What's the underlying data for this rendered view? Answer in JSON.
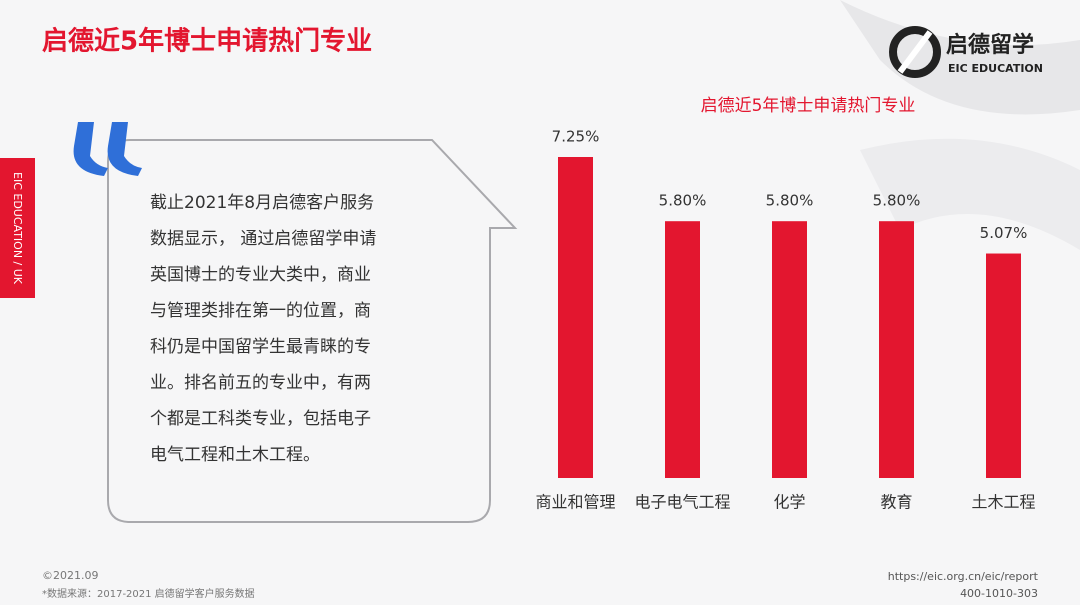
{
  "header": {
    "title": "启德近5年博士申请热门专业",
    "logo_name": "启德留学",
    "logo_sub": "EIC EDUCATION"
  },
  "side_label": "EIC EDUCATION / UK",
  "quote": {
    "lines": [
      "截止2021年8月启德客户服务",
      "数据显示， 通过启德留学申请",
      "英国博士的专业大类中，商业",
      "与管理类排在第一的位置，商",
      "科仍是中国留学生最青睐的专",
      "业。排名前五的专业中，有两",
      "个都是工科类专业，包括电子",
      "电气工程和土木工程。"
    ]
  },
  "chart_data": {
    "type": "bar",
    "title": "启德近5年博士申请热门专业",
    "categories": [
      "商业和管理",
      "电子电气工程",
      "化学",
      "教育",
      "土木工程"
    ],
    "values": [
      7.25,
      5.8,
      5.8,
      5.8,
      5.07
    ],
    "value_labels": [
      "7.25%",
      "5.80%",
      "5.80%",
      "5.80%",
      "5.07%"
    ],
    "color": "#e3162f"
  },
  "footer": {
    "date": "©2021.09",
    "source": "*数据来源：2017-2021 启德留学客户服务数据",
    "url": "https://eic.org.cn/eic/report",
    "phone": "400-1010-303"
  }
}
